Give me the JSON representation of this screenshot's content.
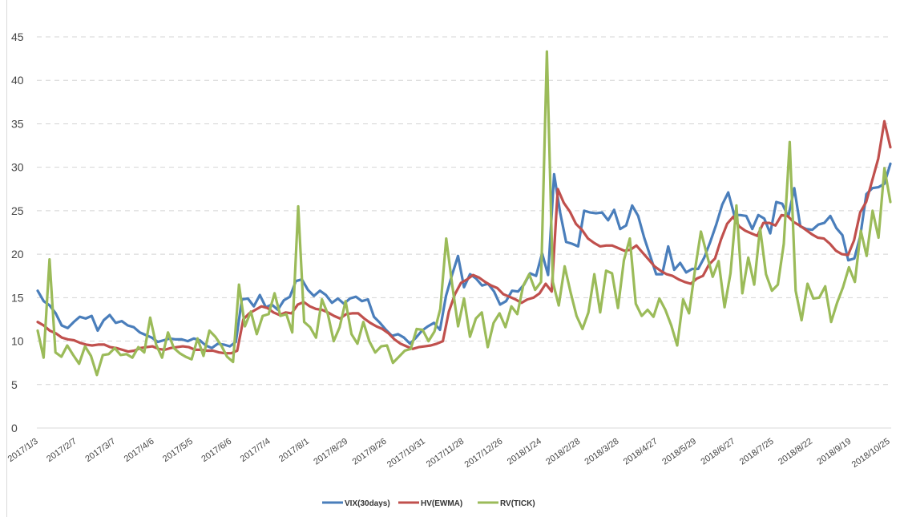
{
  "chart_data": {
    "type": "line",
    "title": "",
    "xlabel": "",
    "ylabel": "",
    "ylim": [
      0,
      45
    ],
    "yticks": [
      0,
      5,
      10,
      15,
      20,
      25,
      30,
      35,
      40,
      45
    ],
    "grid": true,
    "legend_position": "bottom-center",
    "x_tick_labels": [
      "2017/1/3",
      "2017/2/7",
      "2017/3/7",
      "2017/4/6",
      "2017/5/5",
      "2017/6/6",
      "2017/7/4",
      "2017/8/1",
      "2017/8/29",
      "2017/9/26",
      "2017/10/31",
      "2017/11/28",
      "2017/12/26",
      "2018/1/24",
      "2018/2/28",
      "2018/3/28",
      "2018/4/27",
      "2018/5/29",
      "2018/6/27",
      "2018/7/25",
      "2018/8/22",
      "2018/9/19",
      "2018/10/25"
    ],
    "series": [
      {
        "name": "VIX(30days)",
        "color": "#4a7ebb",
        "values": [
          15.8,
          14.6,
          14.1,
          13.2,
          11.8,
          11.5,
          12.2,
          12.8,
          12.6,
          12.9,
          11.2,
          12.4,
          13.0,
          12.1,
          12.3,
          11.8,
          11.6,
          11.0,
          10.7,
          10.4,
          9.9,
          10.1,
          10.3,
          10.2,
          10.2,
          10.0,
          10.3,
          10.1,
          9.5,
          9.2,
          9.7,
          9.6,
          9.4,
          9.9,
          14.8,
          14.9,
          14.0,
          15.3,
          13.9,
          14.2,
          13.6,
          14.7,
          15.1,
          16.9,
          17.1,
          15.9,
          15.2,
          15.8,
          15.3,
          14.4,
          14.9,
          14.3,
          14.9,
          15.1,
          14.6,
          14.8,
          12.8,
          12.1,
          11.3,
          10.6,
          10.8,
          10.4,
          9.7,
          10.4,
          11.2,
          11.7,
          12.1,
          11.3,
          15.2,
          17.6,
          19.8,
          16.2,
          17.7,
          17.2,
          16.4,
          16.6,
          15.7,
          14.2,
          14.6,
          15.8,
          15.7,
          16.5,
          17.8,
          17.5,
          20.1,
          17.6,
          29.2,
          24.8,
          21.4,
          21.2,
          20.9,
          25.0,
          24.8,
          24.7,
          24.8,
          23.9,
          25.1,
          22.9,
          23.3,
          25.6,
          24.4,
          21.9,
          19.8,
          17.7,
          17.7,
          20.9,
          18.2,
          19.0,
          17.9,
          18.3,
          18.3,
          19.6,
          21.4,
          23.4,
          25.7,
          27.1,
          24.5,
          24.5,
          24.4,
          22.9,
          24.5,
          24.1,
          22.4,
          26.0,
          25.8,
          24.3,
          27.6,
          23.2,
          22.9,
          22.8,
          23.4,
          23.6,
          24.4,
          23.0,
          22.2,
          19.3,
          19.5,
          22.1,
          26.9,
          27.6,
          27.7,
          28.1,
          30.4
        ]
      },
      {
        "name": "HV(EWMA)",
        "color": "#c0504d",
        "values": [
          12.2,
          11.8,
          11.2,
          10.9,
          10.4,
          10.2,
          10.1,
          9.8,
          9.6,
          9.5,
          9.6,
          9.6,
          9.3,
          9.2,
          9.0,
          8.8,
          8.9,
          9.2,
          9.3,
          9.4,
          9.1,
          9.0,
          9.2,
          9.3,
          9.4,
          9.3,
          9.0,
          9.0,
          8.9,
          8.9,
          8.7,
          8.6,
          8.6,
          8.9,
          12.5,
          13.2,
          13.6,
          14.0,
          13.8,
          13.3,
          13.0,
          13.3,
          13.2,
          14.2,
          14.5,
          14.0,
          13.7,
          13.6,
          13.3,
          12.9,
          12.6,
          13.1,
          13.2,
          13.2,
          12.6,
          12.1,
          11.7,
          11.4,
          10.9,
          10.2,
          9.7,
          9.4,
          9.1,
          9.3,
          9.4,
          9.5,
          9.7,
          10.0,
          13.4,
          15.4,
          16.7,
          17.1,
          17.6,
          17.3,
          16.8,
          16.4,
          16.1,
          15.4,
          15.1,
          14.8,
          14.4,
          14.8,
          15.0,
          15.5,
          16.6,
          15.7,
          27.5,
          25.9,
          24.9,
          23.5,
          22.8,
          21.8,
          21.3,
          20.9,
          21.0,
          21.0,
          20.7,
          20.4,
          20.5,
          21.0,
          20.2,
          19.4,
          18.6,
          18.1,
          17.7,
          17.5,
          17.1,
          16.8,
          16.6,
          17.2,
          17.5,
          18.8,
          19.5,
          21.7,
          23.5,
          24.3,
          23.2,
          22.7,
          22.4,
          22.1,
          23.6,
          23.6,
          23.3,
          24.5,
          24.4,
          23.7,
          23.3,
          22.8,
          22.3,
          21.9,
          21.8,
          21.2,
          20.4,
          20.0,
          19.9,
          21.6,
          24.8,
          26.0,
          28.5,
          31.0,
          35.3,
          32.3
        ]
      },
      {
        "name": "RV(TICK)",
        "color": "#9bbb59",
        "values": [
          11.2,
          8.1,
          19.4,
          8.7,
          8.2,
          9.5,
          8.4,
          7.4,
          9.4,
          8.3,
          6.1,
          8.4,
          8.5,
          9.2,
          8.4,
          8.5,
          8.1,
          9.3,
          8.7,
          12.7,
          9.6,
          8.1,
          11.0,
          9.2,
          8.6,
          8.2,
          7.9,
          10.3,
          8.3,
          11.2,
          10.5,
          9.5,
          8.2,
          7.6,
          16.5,
          11.7,
          13.4,
          10.8,
          12.9,
          13.1,
          15.5,
          12.9,
          13.1,
          11.0,
          25.5,
          12.2,
          11.6,
          10.4,
          14.8,
          13.1,
          10.0,
          11.6,
          14.6,
          10.8,
          9.7,
          12.2,
          10.0,
          8.7,
          9.4,
          9.5,
          7.5,
          8.2,
          8.9,
          9.1,
          11.4,
          11.3,
          10.0,
          11.1,
          13.7,
          21.8,
          16.5,
          11.7,
          14.9,
          10.5,
          12.6,
          13.3,
          9.3,
          12.1,
          13.2,
          11.6,
          14.0,
          13.1,
          16.4,
          17.7,
          15.9,
          16.8,
          43.3,
          16.8,
          14.1,
          18.6,
          15.6,
          12.9,
          11.4,
          13.3,
          17.7,
          13.3,
          18.1,
          17.8,
          13.8,
          19.3,
          21.8,
          14.3,
          12.9,
          13.6,
          12.8,
          14.9,
          13.6,
          11.8,
          9.5,
          14.8,
          13.2,
          18.2,
          22.6,
          20.0,
          17.4,
          19.2,
          13.9,
          17.8,
          25.6,
          15.5,
          19.6,
          16.5,
          23.0,
          17.7,
          15.8,
          16.5,
          21.2,
          32.9,
          15.8,
          12.4,
          16.6,
          14.9,
          15.0,
          16.3,
          12.2,
          14.4,
          16.2,
          18.5,
          16.8,
          22.7,
          19.8,
          25.0,
          21.9,
          29.9,
          26.0
        ]
      }
    ]
  }
}
